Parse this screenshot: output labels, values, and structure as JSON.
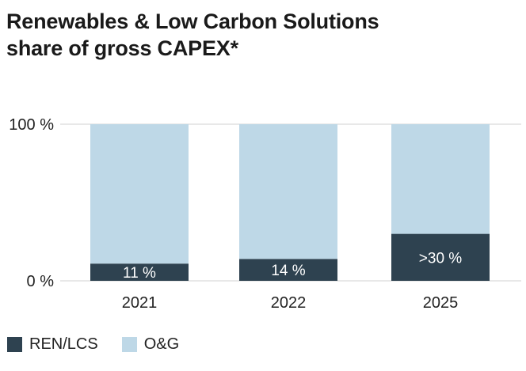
{
  "chart_data": {
    "type": "bar",
    "stacked": true,
    "title_lines": [
      "Renewables & Low Carbon Solutions",
      "share of gross CAPEX*"
    ],
    "categories": [
      "2021",
      "2022",
      "2025"
    ],
    "series": [
      {
        "name": "REN/LCS",
        "values": [
          11,
          14,
          30
        ],
        "color": "#2e4250",
        "labels": [
          "11 %",
          "14 %",
          ">30 %"
        ]
      },
      {
        "name": "O&G",
        "values": [
          89,
          86,
          70
        ],
        "color": "#bed8e7"
      }
    ],
    "ylim": [
      0,
      100
    ],
    "yticks": [
      0,
      100
    ],
    "ytick_labels": [
      "0 %",
      "100 %"
    ],
    "grid": true,
    "legend_position": "bottom-left"
  }
}
